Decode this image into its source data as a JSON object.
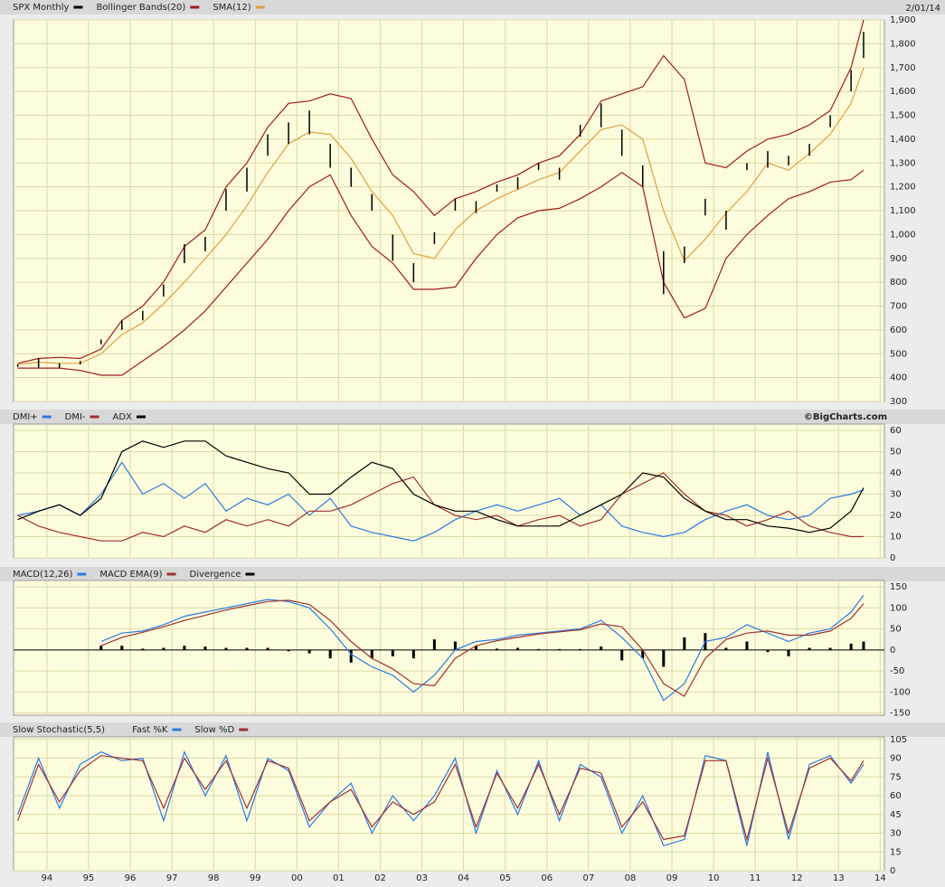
{
  "header": {
    "date": "2/01/14",
    "credit": "©BigCharts.com"
  },
  "chart_data": [
    {
      "type": "ohlc",
      "x": [
        1993.8,
        1994.3,
        1994.8,
        1995.3,
        1995.8,
        1996.3,
        1996.8,
        1997.3,
        1997.8,
        1998.3,
        1998.8,
        1999.3,
        1999.8,
        2000.3,
        2000.8,
        2001.3,
        2001.8,
        2002.3,
        2002.8,
        2003.3,
        2003.8,
        2004.3,
        2004.8,
        2005.3,
        2005.8,
        2006.3,
        2006.8,
        2007.3,
        2007.8,
        2008.3,
        2008.8,
        2009.3,
        2009.8,
        2010.3,
        2010.8,
        2011.3,
        2011.8,
        2012.3,
        2012.8,
        2013.3,
        2013.8,
        2014.1
      ],
      "xlim": [
        1993.7,
        2014.6
      ],
      "ylim": [
        300,
        1900
      ],
      "yticks": [
        300,
        400,
        500,
        600,
        700,
        800,
        900,
        {
          "value": 1000,
          "label": "1,000"
        },
        {
          "value": 1100,
          "label": "1,100"
        },
        {
          "value": 1200,
          "label": "1,200"
        },
        {
          "value": 1300,
          "label": "1,300"
        },
        {
          "value": 1400,
          "label": "1,400"
        },
        {
          "value": 1500,
          "label": "1,500"
        },
        {
          "value": 1600,
          "label": "1,600"
        },
        {
          "value": 1700,
          "label": "1,700"
        },
        {
          "value": 1800,
          "label": "1,800"
        },
        {
          "value": 1900,
          "label": "1,900"
        }
      ],
      "grid": true,
      "price": {
        "name": "SPX Monthly",
        "color": "#000000",
        "high": [
          455,
          482,
          460,
          470,
          560,
          640,
          680,
          790,
          960,
          990,
          1190,
          1280,
          1420,
          1470,
          1520,
          1380,
          1280,
          1170,
          1000,
          880,
          1010,
          1150,
          1140,
          1210,
          1240,
          1300,
          1280,
          1460,
          1550,
          1440,
          1290,
          930,
          950,
          1150,
          1100,
          1300,
          1350,
          1330,
          1380,
          1500,
          1690,
          1850
        ],
        "low": [
          445,
          440,
          440,
          455,
          540,
          600,
          640,
          740,
          880,
          930,
          1100,
          1180,
          1330,
          1380,
          1420,
          1280,
          1200,
          1100,
          890,
          800,
          960,
          1100,
          1090,
          1180,
          1190,
          1270,
          1230,
          1410,
          1450,
          1330,
          1200,
          750,
          880,
          1080,
          1020,
          1270,
          1280,
          1290,
          1330,
          1450,
          1600,
          1740
        ]
      },
      "bands": {
        "name": "Bollinger Bands(20)",
        "color": "#a01c1c",
        "upper": [
          460,
          480,
          485,
          480,
          520,
          640,
          700,
          800,
          950,
          1020,
          1200,
          1300,
          1450,
          1550,
          1560,
          1590,
          1570,
          1400,
          1250,
          1180,
          1080,
          1150,
          1180,
          1220,
          1250,
          1300,
          1330,
          1420,
          1560,
          1590,
          1620,
          1750,
          1650,
          1300,
          1280,
          1350,
          1400,
          1420,
          1460,
          1520,
          1700,
          1900
        ],
        "lower": [
          440,
          440,
          440,
          430,
          410,
          410,
          470,
          530,
          600,
          680,
          780,
          880,
          980,
          1100,
          1200,
          1250,
          1080,
          950,
          880,
          770,
          770,
          780,
          900,
          1000,
          1070,
          1100,
          1110,
          1150,
          1200,
          1260,
          1200,
          800,
          650,
          690,
          900,
          1000,
          1080,
          1150,
          1180,
          1220,
          1230,
          1270
        ]
      },
      "sma": {
        "name": "SMA(12)",
        "color": "#e0a040",
        "values": [
          455,
          465,
          460,
          460,
          500,
          580,
          630,
          710,
          800,
          900,
          1000,
          1120,
          1260,
          1380,
          1430,
          1420,
          1320,
          1180,
          1080,
          920,
          900,
          1020,
          1100,
          1150,
          1190,
          1230,
          1260,
          1350,
          1440,
          1460,
          1400,
          1100,
          890,
          980,
          1090,
          1180,
          1300,
          1270,
          1340,
          1420,
          1550,
          1700
        ]
      }
    },
    {
      "type": "line",
      "x": [
        1993.8,
        1994.3,
        1994.8,
        1995.3,
        1995.8,
        1996.3,
        1996.8,
        1997.3,
        1997.8,
        1998.3,
        1998.8,
        1999.3,
        1999.8,
        2000.3,
        2000.8,
        2001.3,
        2001.8,
        2002.3,
        2002.8,
        2003.3,
        2003.8,
        2004.3,
        2004.8,
        2005.3,
        2005.8,
        2006.3,
        2006.8,
        2007.3,
        2007.8,
        2008.3,
        2008.8,
        2009.3,
        2009.8,
        2010.3,
        2010.8,
        2011.3,
        2011.8,
        2012.3,
        2012.8,
        2013.3,
        2013.8,
        2014.1
      ],
      "xlim": [
        1993.7,
        2014.6
      ],
      "ylim": [
        0,
        63
      ],
      "yticks": [
        0,
        10,
        20,
        30,
        40,
        50,
        60
      ],
      "grid": true,
      "series": [
        {
          "name": "DMI+",
          "color": "#2a7ae2",
          "values": [
            20,
            22,
            25,
            20,
            30,
            45,
            30,
            35,
            28,
            35,
            22,
            28,
            25,
            30,
            20,
            28,
            15,
            12,
            10,
            8,
            12,
            18,
            22,
            25,
            22,
            25,
            28,
            20,
            25,
            15,
            12,
            10,
            12,
            18,
            22,
            25,
            20,
            18,
            20,
            28,
            30,
            32
          ]
        },
        {
          "name": "DMI-",
          "color": "#a03030",
          "values": [
            20,
            15,
            12,
            10,
            8,
            8,
            12,
            10,
            15,
            12,
            18,
            15,
            18,
            15,
            22,
            22,
            25,
            30,
            35,
            38,
            25,
            20,
            18,
            20,
            15,
            18,
            20,
            15,
            18,
            30,
            35,
            40,
            30,
            22,
            20,
            15,
            18,
            22,
            15,
            12,
            10,
            10
          ]
        },
        {
          "name": "ADX",
          "color": "#000000",
          "values": [
            18,
            22,
            25,
            20,
            28,
            50,
            55,
            52,
            55,
            55,
            48,
            45,
            42,
            40,
            30,
            30,
            38,
            45,
            42,
            30,
            25,
            22,
            22,
            18,
            15,
            15,
            15,
            20,
            25,
            30,
            40,
            38,
            28,
            22,
            18,
            18,
            15,
            14,
            12,
            14,
            22,
            33
          ]
        }
      ]
    },
    {
      "type": "macd",
      "x": [
        1993.8,
        1994.3,
        1994.8,
        1995.3,
        1995.8,
        1996.3,
        1996.8,
        1997.3,
        1997.8,
        1998.3,
        1998.8,
        1999.3,
        1999.8,
        2000.3,
        2000.8,
        2001.3,
        2001.8,
        2002.3,
        2002.8,
        2003.3,
        2003.8,
        2004.3,
        2004.8,
        2005.3,
        2005.8,
        2006.3,
        2006.8,
        2007.3,
        2007.8,
        2008.3,
        2008.8,
        2009.3,
        2009.8,
        2010.3,
        2010.8,
        2011.3,
        2011.8,
        2012.3,
        2012.8,
        2013.3,
        2013.8,
        2014.1
      ],
      "xlim": [
        1993.7,
        2014.6
      ],
      "ylim": [
        -155,
        165
      ],
      "yticks": [
        -150,
        -100,
        -50,
        0,
        50,
        100,
        150
      ],
      "grid": true,
      "series": [
        {
          "name": "MACD(12,26)",
          "color": "#2a7ae2",
          "values": [
            null,
            null,
            null,
            null,
            20,
            40,
            45,
            60,
            80,
            90,
            100,
            110,
            120,
            115,
            100,
            50,
            -10,
            -40,
            -60,
            -100,
            -60,
            0,
            20,
            25,
            35,
            40,
            45,
            50,
            70,
            30,
            -20,
            -120,
            -80,
            20,
            30,
            60,
            40,
            20,
            40,
            50,
            90,
            130
          ]
        },
        {
          "name": "MACD EMA(9)",
          "color": "#a03030",
          "values": [
            null,
            null,
            null,
            null,
            10,
            30,
            42,
            55,
            70,
            82,
            95,
            105,
            115,
            118,
            108,
            70,
            20,
            -20,
            -45,
            -80,
            -85,
            -20,
            10,
            22,
            30,
            38,
            43,
            48,
            62,
            55,
            0,
            -80,
            -110,
            -20,
            25,
            40,
            45,
            35,
            35,
            45,
            75,
            110
          ]
        }
      ],
      "histogram": {
        "name": "Divergence",
        "color": "#000000",
        "values": [
          null,
          null,
          null,
          null,
          10,
          10,
          3,
          5,
          10,
          8,
          5,
          5,
          5,
          -3,
          -8,
          -20,
          -30,
          -20,
          -15,
          -20,
          25,
          20,
          10,
          3,
          5,
          2,
          2,
          2,
          8,
          -25,
          -20,
          -40,
          30,
          40,
          5,
          20,
          -5,
          -15,
          5,
          5,
          15,
          20
        ]
      }
    },
    {
      "type": "line",
      "title": "Slow Stochastic(5,5)",
      "x": [
        1993.8,
        1994.3,
        1994.8,
        1995.3,
        1995.8,
        1996.3,
        1996.8,
        1997.3,
        1997.8,
        1998.3,
        1998.8,
        1999.3,
        1999.8,
        2000.3,
        2000.8,
        2001.3,
        2001.8,
        2002.3,
        2002.8,
        2003.3,
        2003.8,
        2004.3,
        2004.8,
        2005.3,
        2005.8,
        2006.3,
        2006.8,
        2007.3,
        2007.8,
        2008.3,
        2008.8,
        2009.3,
        2009.8,
        2010.3,
        2010.8,
        2011.3,
        2011.8,
        2012.3,
        2012.8,
        2013.3,
        2013.8,
        2014.1
      ],
      "xlim": [
        1993.7,
        2014.6
      ],
      "ylim": [
        0,
        107
      ],
      "yticks": [
        0,
        15,
        30,
        45,
        60,
        75,
        90,
        105
      ],
      "xticks": [
        {
          "value": 1994.5,
          "label": "94"
        },
        {
          "value": 1995.5,
          "label": "95"
        },
        {
          "value": 1996.5,
          "label": "96"
        },
        {
          "value": 1997.5,
          "label": "97"
        },
        {
          "value": 1998.5,
          "label": "98"
        },
        {
          "value": 1999.5,
          "label": "99"
        },
        {
          "value": 2000.5,
          "label": "00"
        },
        {
          "value": 2001.5,
          "label": "01"
        },
        {
          "value": 2002.5,
          "label": "02"
        },
        {
          "value": 2003.5,
          "label": "03"
        },
        {
          "value": 2004.5,
          "label": "04"
        },
        {
          "value": 2005.5,
          "label": "05"
        },
        {
          "value": 2006.5,
          "label": "06"
        },
        {
          "value": 2007.5,
          "label": "07"
        },
        {
          "value": 2008.5,
          "label": "08"
        },
        {
          "value": 2009.5,
          "label": "09"
        },
        {
          "value": 2010.5,
          "label": "10"
        },
        {
          "value": 2011.5,
          "label": "11"
        },
        {
          "value": 2012.5,
          "label": "12"
        },
        {
          "value": 2013.5,
          "label": "13"
        },
        {
          "value": 2014.5,
          "label": "14"
        }
      ],
      "grid": true,
      "series": [
        {
          "name": "Fast %K",
          "color": "#2a7ae2",
          "values": [
            45,
            90,
            50,
            85,
            95,
            88,
            90,
            40,
            95,
            60,
            92,
            40,
            90,
            80,
            35,
            55,
            70,
            30,
            60,
            40,
            60,
            90,
            30,
            80,
            45,
            88,
            40,
            85,
            75,
            30,
            60,
            20,
            25,
            92,
            88,
            20,
            95,
            25,
            85,
            92,
            70,
            85
          ]
        },
        {
          "name": "Slow %D",
          "color": "#a03030",
          "values": [
            40,
            85,
            55,
            80,
            92,
            90,
            88,
            50,
            90,
            65,
            88,
            50,
            88,
            82,
            40,
            55,
            65,
            35,
            55,
            45,
            55,
            85,
            35,
            78,
            50,
            85,
            45,
            82,
            78,
            35,
            55,
            25,
            28,
            88,
            88,
            25,
            90,
            30,
            82,
            90,
            72,
            88
          ]
        }
      ]
    }
  ]
}
